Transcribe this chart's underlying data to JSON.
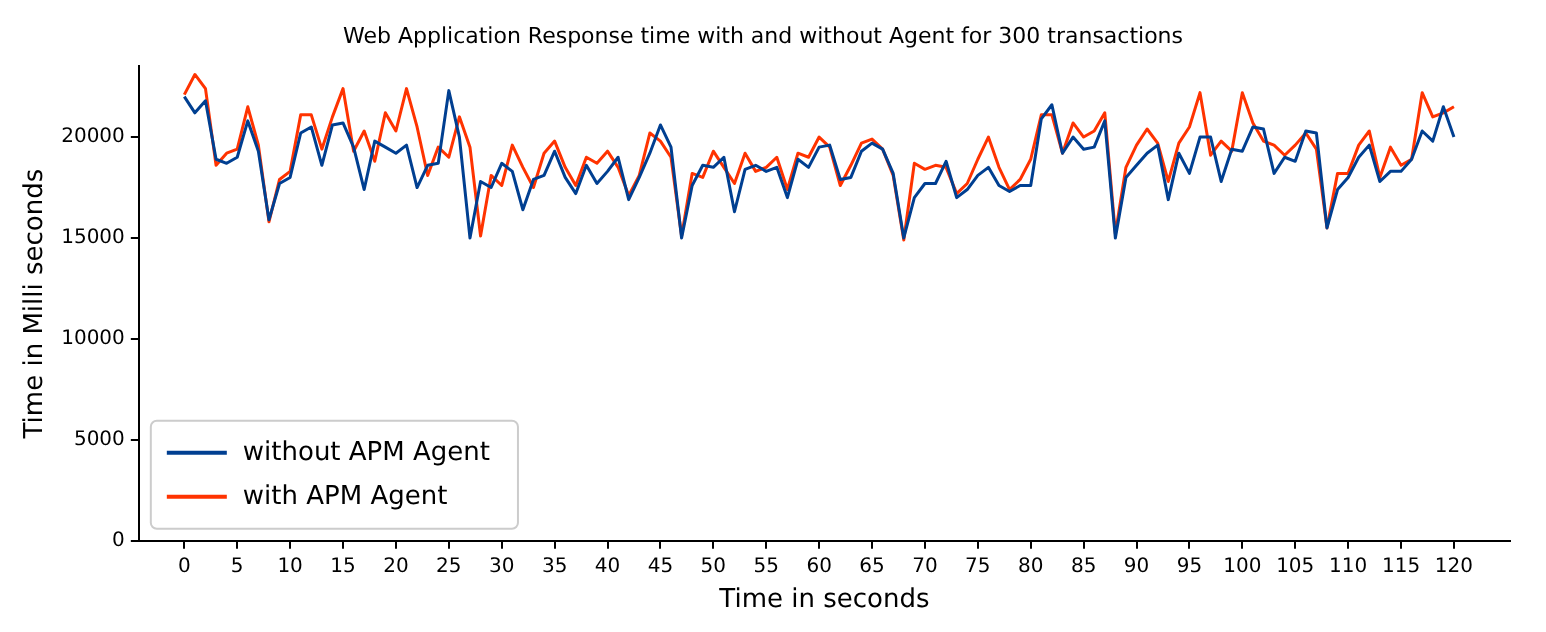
{
  "chart_data": {
    "type": "line",
    "title": "Web Application Response time with and without Agent for 300 transactions",
    "xlabel": "Time in seconds",
    "ylabel": "Time in Milli seconds",
    "x": [
      0,
      1,
      2,
      3,
      4,
      5,
      6,
      7,
      8,
      9,
      10,
      11,
      12,
      13,
      14,
      15,
      16,
      17,
      18,
      19,
      20,
      21,
      22,
      23,
      24,
      25,
      26,
      27,
      28,
      29,
      30,
      31,
      32,
      33,
      34,
      35,
      36,
      37,
      38,
      39,
      40,
      41,
      42,
      43,
      44,
      45,
      46,
      47,
      48,
      49,
      50,
      51,
      52,
      53,
      54,
      55,
      56,
      57,
      58,
      59,
      60,
      61,
      62,
      63,
      64,
      65,
      66,
      67,
      68,
      69,
      70,
      71,
      72,
      73,
      74,
      75,
      76,
      77,
      78,
      79,
      80,
      81,
      82,
      83,
      84,
      85,
      86,
      87,
      88,
      89,
      90,
      91,
      92,
      93,
      94,
      95,
      96,
      97,
      98,
      99,
      100,
      101,
      102,
      103,
      104,
      105,
      106,
      107,
      108,
      109,
      110,
      111,
      112,
      113,
      114,
      115,
      116,
      117,
      118,
      119,
      120
    ],
    "series": [
      {
        "name": "without APM Agent",
        "color": "#003f91",
        "values": [
          22000,
          21200,
          21800,
          18900,
          18700,
          19000,
          20800,
          19300,
          15900,
          17700,
          18000,
          20200,
          20500,
          18600,
          20600,
          20700,
          19500,
          17400,
          19800,
          19500,
          19200,
          19600,
          17500,
          18600,
          18700,
          22300,
          20000,
          15000,
          17800,
          17500,
          18700,
          18300,
          16400,
          17900,
          18100,
          19300,
          18000,
          17200,
          18600,
          17700,
          18300,
          19000,
          16900,
          18000,
          19200,
          20600,
          19500,
          15000,
          17600,
          18600,
          18500,
          19000,
          16300,
          18400,
          18600,
          18300,
          18500,
          17000,
          18900,
          18500,
          19500,
          19600,
          17900,
          18000,
          19300,
          19700,
          19400,
          18200,
          15000,
          17000,
          17700,
          17700,
          18800,
          17000,
          17400,
          18100,
          18500,
          17600,
          17300,
          17600,
          17600,
          20900,
          21600,
          19200,
          20000,
          19400,
          19500,
          20800,
          15000,
          18000,
          18600,
          19200,
          19600,
          16900,
          19200,
          18200,
          20000,
          20000,
          17800,
          19400,
          19300,
          20500,
          20400,
          18200,
          19000,
          18800,
          20300,
          20200,
          15500,
          17400,
          18000,
          19000,
          19600,
          17800,
          18300,
          18300,
          18900,
          20300,
          19800,
          21500,
          20000
        ]
      },
      {
        "name": "with APM Agent",
        "color": "#ff3300",
        "values": [
          22100,
          23100,
          22400,
          18600,
          19200,
          19400,
          21500,
          19600,
          15800,
          17900,
          18300,
          21100,
          21100,
          19400,
          21000,
          22400,
          19300,
          20300,
          18800,
          21200,
          20300,
          22400,
          20500,
          18100,
          19500,
          19000,
          21000,
          19500,
          15100,
          18100,
          17600,
          19600,
          18500,
          17500,
          19200,
          19800,
          18500,
          17600,
          19000,
          18700,
          19300,
          18500,
          17100,
          18100,
          20200,
          19800,
          19000,
          15100,
          18200,
          18000,
          19300,
          18500,
          17700,
          19200,
          18300,
          18500,
          19000,
          17400,
          19200,
          19000,
          20000,
          19500,
          17600,
          18600,
          19700,
          19900,
          19400,
          18100,
          14900,
          18700,
          18400,
          18600,
          18500,
          17200,
          17700,
          18900,
          20000,
          18500,
          17400,
          17900,
          18900,
          21100,
          21100,
          19200,
          20700,
          20000,
          20300,
          21200,
          15200,
          18500,
          19600,
          20400,
          19700,
          17800,
          19700,
          20500,
          22200,
          19100,
          19800,
          19300,
          22200,
          20700,
          19800,
          19600,
          19100,
          19600,
          20200,
          19400,
          15500,
          18200,
          18200,
          19600,
          20300,
          18000,
          19500,
          18600,
          18900,
          22200,
          21000,
          21200,
          21500
        ]
      }
    ],
    "xlim": [
      -4.3,
      125.3
    ],
    "xticks": [
      0,
      5,
      10,
      15,
      20,
      25,
      30,
      35,
      40,
      45,
      50,
      55,
      60,
      65,
      70,
      75,
      80,
      85,
      90,
      95,
      100,
      105,
      110,
      115,
      120
    ],
    "ylim": [
      0,
      23500
    ],
    "yticks": [
      0,
      5000,
      10000,
      15000,
      20000
    ],
    "grid": false,
    "legend": "bottom left",
    "marker": "none",
    "line_style": "solid"
  }
}
